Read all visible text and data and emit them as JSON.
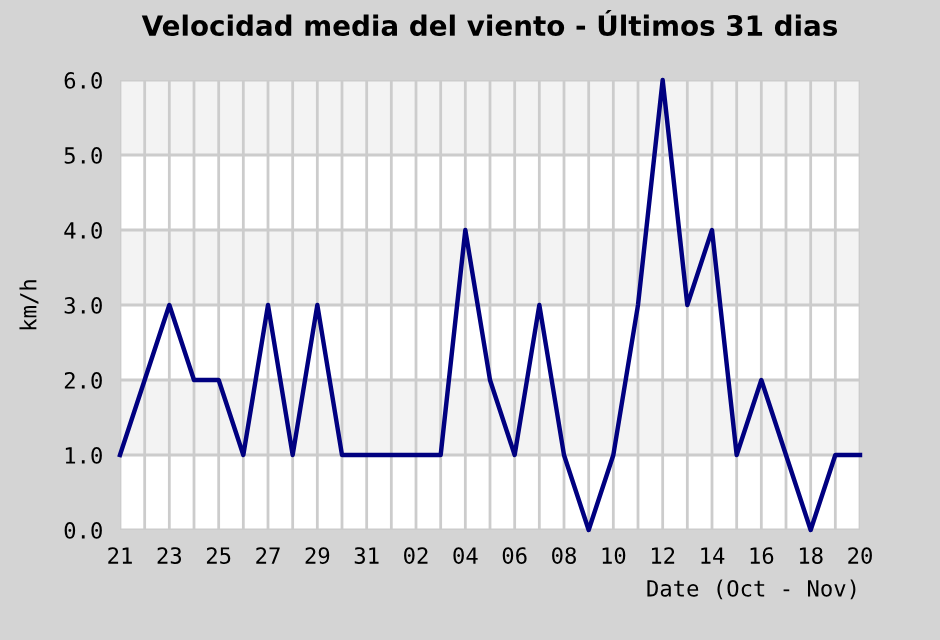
{
  "chart_data": {
    "type": "line",
    "title": "Velocidad media del viento - Últimos 31 dias",
    "xlabel": "Date (Oct - Nov)",
    "ylabel": "km/h",
    "categories": [
      "21",
      null,
      "23",
      null,
      "25",
      null,
      "27",
      null,
      "29",
      null,
      "31",
      null,
      "02",
      null,
      "04",
      null,
      "06",
      null,
      "08",
      null,
      "10",
      null,
      "12",
      null,
      "14",
      null,
      "16",
      null,
      "18",
      null,
      "20"
    ],
    "series": [
      {
        "color": "#000080",
        "values": [
          1,
          2,
          3,
          2,
          2,
          1,
          3,
          1,
          3,
          1,
          1,
          1,
          1,
          1,
          4,
          2,
          1,
          3,
          1,
          0,
          1,
          3,
          6,
          3,
          4,
          1,
          2,
          1,
          0,
          1,
          1
        ]
      }
    ],
    "ylim": [
      0,
      6
    ],
    "yticks": [
      {
        "value": 0,
        "label": "0.0"
      },
      {
        "value": 1,
        "label": "1.0"
      },
      {
        "value": 2,
        "label": "2.0"
      },
      {
        "value": 3,
        "label": "3.0"
      },
      {
        "value": 4,
        "label": "4.0"
      },
      {
        "value": 5,
        "label": "5.0"
      },
      {
        "value": 6,
        "label": "6.0"
      }
    ],
    "grid": true,
    "legend": false,
    "marker": "none",
    "line_style": "solid"
  }
}
